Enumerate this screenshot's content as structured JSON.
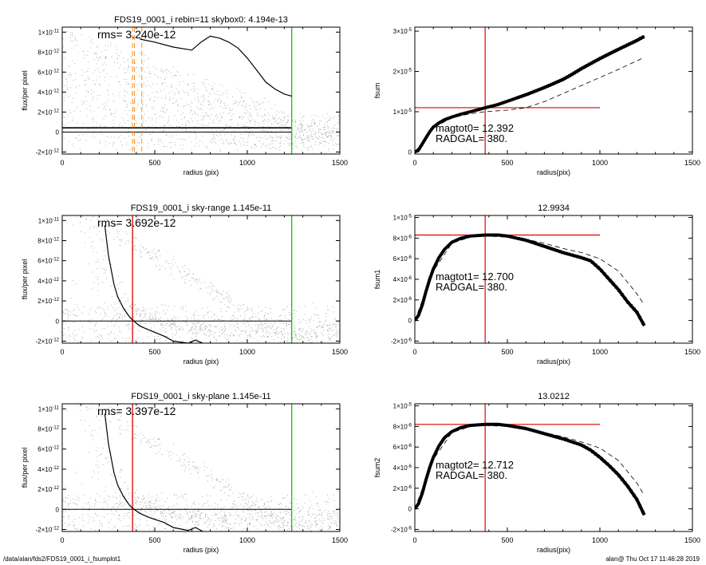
{
  "footer": {
    "path": "/data/alan/fds2/FDS19_0001_i_fsumplot1",
    "stamp": "alan@  Thu Oct 17 11:46:28 2019"
  },
  "colors": {
    "sky": "#000000",
    "radgal": "#e00000",
    "edge": "#00cc00",
    "dashed": "#ff8c1a",
    "points": "#8a8a8a"
  },
  "chart_data": [
    {
      "type": "scatter",
      "title": "FDS19_0001_i rebin=11    skybox0:  4.194e-13",
      "annotation": "rms= 3.240e-12",
      "xlabel": "radius (pix)",
      "ylabel": "flux/per pixel",
      "xlim": [
        0,
        1500
      ],
      "ylim": [
        -2.2e-12,
        1.05e-11
      ],
      "xticks": [
        "0",
        "500",
        "1000",
        "1500"
      ],
      "yticks": [
        {
          "value": 1e-11,
          "label": "1×10-11"
        },
        {
          "value": 8e-12,
          "label": "8×10-12"
        },
        {
          "value": 6e-12,
          "label": "6×10-12"
        },
        {
          "value": 4e-12,
          "label": "4×10-12"
        },
        {
          "value": 2e-12,
          "label": "2×10-12"
        },
        {
          "value": 0,
          "label": "0"
        },
        {
          "value": -2e-12,
          "label": "-2×10-12"
        }
      ],
      "hlines": [
        0,
        4.194e-13
      ],
      "vlines_dashed": [
        380,
        390,
        430
      ],
      "vline_edge": 1240,
      "profile": {
        "x": [
          420,
          500,
          600,
          700,
          750,
          800,
          850,
          900,
          950,
          1000,
          1050,
          1100,
          1150,
          1200,
          1240
        ],
        "y": [
          9.3e-12,
          9e-12,
          8.5e-12,
          8.2e-12,
          9e-12,
          9.6e-12,
          9.4e-12,
          9e-12,
          8.4e-12,
          7.4e-12,
          6.2e-12,
          5e-12,
          4.3e-12,
          3.8e-12,
          3.6e-12
        ]
      }
    },
    {
      "type": "line",
      "title": "",
      "annotation": [
        "magtot0=  12.392",
        "RADGAL=    380."
      ],
      "xlabel": "radius(pix)",
      "ylabel": "fsum",
      "xlim": [
        0,
        1500
      ],
      "ylim": [
        -5e-07,
        3.1e-05
      ],
      "xticks": [
        "0",
        "500",
        "1000",
        "1500"
      ],
      "yticks": [
        {
          "value": 3e-05,
          "label": "3×10-5"
        },
        {
          "value": 2e-05,
          "label": "2×10-5"
        },
        {
          "value": 1e-05,
          "label": "1×10-5"
        },
        {
          "value": 0,
          "label": "0"
        }
      ],
      "radgal": 380,
      "level": 1.1e-05,
      "level_xmax": 1000,
      "series": [
        {
          "values_x": [
            0,
            20,
            40,
            60,
            80,
            100,
            130,
            160,
            200,
            250,
            300,
            350,
            380,
            450,
            500,
            600,
            700,
            800,
            850,
            900,
            1000,
            1100,
            1200,
            1240
          ],
          "values_y": [
            0,
            5e-07,
            2e-06,
            3.5e-06,
            5e-06,
            6.2e-06,
            7.2e-06,
            8e-06,
            8.7e-06,
            9.4e-06,
            1e-05,
            1.06e-05,
            1.1e-05,
            1.18e-05,
            1.26e-05,
            1.42e-05,
            1.6e-05,
            1.8e-05,
            1.93e-05,
            2.07e-05,
            2.32e-05,
            2.55e-05,
            2.77e-05,
            2.87e-05
          ]
        },
        {
          "values_x": [
            0,
            100,
            200,
            300,
            380,
            500,
            600,
            700,
            800,
            900,
            1000,
            1100,
            1240
          ],
          "values_y": [
            0,
            6e-06,
            8.5e-06,
            9.5e-06,
            1e-05,
            1.04e-05,
            1.1e-05,
            1.25e-05,
            1.45e-05,
            1.65e-05,
            1.85e-05,
            2.05e-05,
            2.35e-05
          ]
        }
      ]
    },
    {
      "type": "scatter",
      "title": "FDS19_0001_i sky-range  1.145e-11",
      "annotation": "rms= 3.692e-12",
      "xlabel": "radius (pix)",
      "ylabel": "flux/per pixel",
      "xlim": [
        0,
        1500
      ],
      "ylim": [
        -2.2e-12,
        1.05e-11
      ],
      "xticks": [
        "0",
        "500",
        "1000",
        "1500"
      ],
      "yticks": [
        {
          "value": 1e-11,
          "label": "1×10-11"
        },
        {
          "value": 8e-12,
          "label": "8×10-12"
        },
        {
          "value": 6e-12,
          "label": "6×10-12"
        },
        {
          "value": 4e-12,
          "label": "4×10-12"
        },
        {
          "value": 2e-12,
          "label": "2×10-12"
        },
        {
          "value": 0,
          "label": "0"
        },
        {
          "value": -2e-12,
          "label": "-2×10-12"
        }
      ],
      "hlines": [
        0
      ],
      "vline_radgal": 380,
      "vline_edge": 1240,
      "profile": {
        "x": [
          230,
          250,
          280,
          300,
          330,
          360,
          380,
          420,
          470,
          550,
          600,
          680,
          720,
          760
        ],
        "y": [
          9.5e-12,
          6.5e-12,
          3.6e-12,
          2.4e-12,
          1.3e-12,
          5e-13,
          1e-13,
          -5e-13,
          -9e-13,
          -1.5e-12,
          -2e-12,
          -2.2e-12,
          -1.9e-12,
          -2.2e-12
        ]
      }
    },
    {
      "type": "line",
      "title": "12.9934",
      "annotation": [
        "magtot1=  12.700",
        "RADGAL=    380."
      ],
      "xlabel": "radius(pix)",
      "ylabel": "fsum1",
      "xlim": [
        0,
        1500
      ],
      "ylim": [
        -2.2e-06,
        1.02e-05
      ],
      "xticks": [
        "0",
        "500",
        "1000",
        "1500"
      ],
      "yticks": [
        {
          "value": 1e-05,
          "label": "1×10-5"
        },
        {
          "value": 8e-06,
          "label": "8×10-6"
        },
        {
          "value": 6e-06,
          "label": "6×10-6"
        },
        {
          "value": 4e-06,
          "label": "4×10-6"
        },
        {
          "value": 2e-06,
          "label": "2×10-6"
        },
        {
          "value": 0,
          "label": "0"
        },
        {
          "value": -2e-06,
          "label": "-2×10-6"
        }
      ],
      "radgal": 380,
      "level": 8.3e-06,
      "level_xmax": 1000,
      "series": [
        {
          "values_x": [
            0,
            20,
            40,
            60,
            80,
            100,
            130,
            160,
            200,
            250,
            300,
            380,
            450,
            500,
            600,
            700,
            800,
            900,
            950,
            1000,
            1050,
            1100,
            1150,
            1200,
            1240
          ],
          "values_y": [
            0,
            5e-07,
            1.5e-06,
            2.8e-06,
            4e-06,
            5e-06,
            6.1e-06,
            6.9e-06,
            7.6e-06,
            8e-06,
            8.2e-06,
            8.3e-06,
            8.3e-06,
            8.2e-06,
            7.8e-06,
            7.2e-06,
            6.6e-06,
            6.1e-06,
            5.8e-06,
            5e-06,
            4e-06,
            3e-06,
            1.8e-06,
            8e-07,
            -5e-07
          ]
        },
        {
          "values_x": [
            0,
            100,
            200,
            300,
            380,
            500,
            600,
            700,
            800,
            900,
            1000,
            1100,
            1200,
            1240
          ],
          "values_y": [
            0,
            4.8e-06,
            7.5e-06,
            8.1e-06,
            8.2e-06,
            8.1e-06,
            7.9e-06,
            7.5e-06,
            7e-06,
            6.6e-06,
            6e-06,
            4.8e-06,
            2.6e-06,
            1.5e-06
          ]
        }
      ]
    },
    {
      "type": "scatter",
      "title": "FDS19_0001_i sky-plane  1.145e-11",
      "annotation": "rms= 3.397e-12",
      "xlabel": "radius (pix)",
      "ylabel": "flux/per pixel",
      "xlim": [
        0,
        1500
      ],
      "ylim": [
        -2.2e-12,
        1.05e-11
      ],
      "xticks": [
        "0",
        "500",
        "1000",
        "1500"
      ],
      "yticks": [
        {
          "value": 1e-11,
          "label": "1×10-11"
        },
        {
          "value": 8e-12,
          "label": "8×10-12"
        },
        {
          "value": 6e-12,
          "label": "6×10-12"
        },
        {
          "value": 4e-12,
          "label": "4×10-12"
        },
        {
          "value": 2e-12,
          "label": "2×10-12"
        },
        {
          "value": 0,
          "label": "0"
        },
        {
          "value": -2e-12,
          "label": "-2×10-12"
        }
      ],
      "hlines": [
        0
      ],
      "vline_radgal": 380,
      "vline_edge": 1240,
      "profile": {
        "x": [
          230,
          250,
          280,
          300,
          330,
          360,
          380,
          420,
          470,
          550,
          600,
          680,
          720,
          760
        ],
        "y": [
          9.5e-12,
          6.5e-12,
          3.6e-12,
          2.4e-12,
          1.3e-12,
          5e-13,
          1e-13,
          -4e-13,
          -8e-13,
          -1.3e-12,
          -1.8e-12,
          -2.1e-12,
          -1.8e-12,
          -2.2e-12
        ]
      }
    },
    {
      "type": "line",
      "title": "13.0212",
      "annotation": [
        "magtot2=  12.712",
        "RADGAL=    380."
      ],
      "xlabel": "radius(pix)",
      "ylabel": "fsum2",
      "xlim": [
        0,
        1500
      ],
      "ylim": [
        -2.2e-06,
        1.02e-05
      ],
      "xticks": [
        "0",
        "500",
        "1000",
        "1500"
      ],
      "yticks": [
        {
          "value": 1e-05,
          "label": "1×10-5"
        },
        {
          "value": 8e-06,
          "label": "8×10-6"
        },
        {
          "value": 6e-06,
          "label": "6×10-6"
        },
        {
          "value": 4e-06,
          "label": "4×10-6"
        },
        {
          "value": 2e-06,
          "label": "2×10-6"
        },
        {
          "value": 0,
          "label": "0"
        },
        {
          "value": -2e-06,
          "label": "-2×10-6"
        }
      ],
      "radgal": 380,
      "level": 8.2e-06,
      "level_xmax": 1000,
      "series": [
        {
          "values_x": [
            0,
            20,
            40,
            60,
            80,
            100,
            130,
            160,
            200,
            250,
            300,
            380,
            450,
            500,
            600,
            700,
            800,
            900,
            950,
            1000,
            1050,
            1100,
            1150,
            1200,
            1240
          ],
          "values_y": [
            0,
            5e-07,
            1.5e-06,
            2.8e-06,
            4e-06,
            5e-06,
            6.1e-06,
            6.9e-06,
            7.5e-06,
            7.9e-06,
            8.1e-06,
            8.2e-06,
            8.2e-06,
            8.1e-06,
            7.8e-06,
            7.3e-06,
            6.8e-06,
            6.2e-06,
            5.7e-06,
            5e-06,
            4.2e-06,
            3.3e-06,
            2.2e-06,
            9e-07,
            -6e-07
          ]
        },
        {
          "values_x": [
            0,
            100,
            200,
            300,
            380,
            500,
            600,
            700,
            800,
            900,
            1000,
            1100,
            1200,
            1240
          ],
          "values_y": [
            0,
            4.8e-06,
            7.4e-06,
            8e-06,
            8.1e-06,
            8e-06,
            7.8e-06,
            7.4e-06,
            7e-06,
            6.5e-06,
            5.9e-06,
            4.7e-06,
            2.5e-06,
            1.3e-06
          ]
        }
      ]
    }
  ]
}
